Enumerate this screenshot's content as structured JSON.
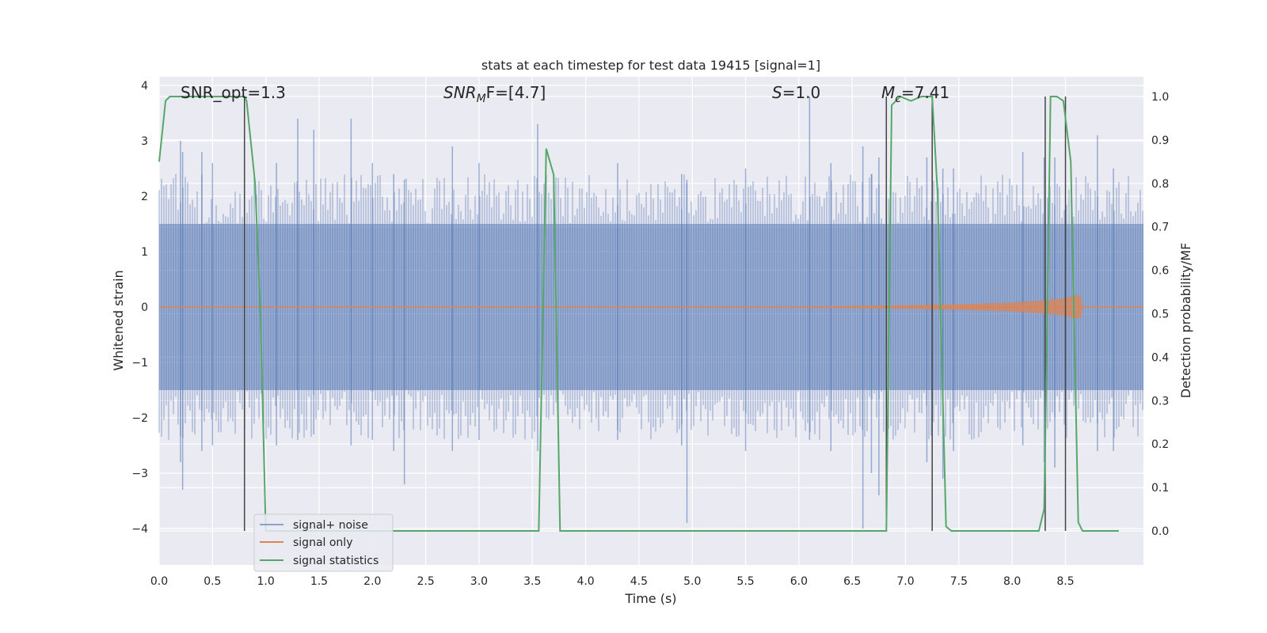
{
  "chart_data": {
    "type": "line",
    "title": "stats at each timestep for test data 19415 [signal=1]",
    "xlabel": "Time (s)",
    "ylabel_left": "Whitened strain",
    "ylabel_right": "Detection probability/MF",
    "xlim": [
      0.0,
      9.0
    ],
    "ylim_left": [
      -4.4,
      4.2
    ],
    "ylim_right": [
      -0.05,
      1.05
    ],
    "x_ticks": [
      "0.0",
      "0.5",
      "1.0",
      "1.5",
      "2.0",
      "2.5",
      "3.0",
      "3.5",
      "4.0",
      "4.5",
      "5.0",
      "5.5",
      "6.0",
      "6.5",
      "7.0",
      "7.5",
      "8.0",
      "8.5"
    ],
    "y_ticks_left": [
      "4",
      "3",
      "2",
      "1",
      "0",
      "−1",
      "−2",
      "−3",
      "−4"
    ],
    "y_ticks_right": [
      "1.0",
      "0.9",
      "0.8",
      "0.7",
      "0.6",
      "0.5",
      "0.4",
      "0.3",
      "0.2",
      "0.1",
      "0.0"
    ],
    "grid": true,
    "legend_position": "lower-left",
    "colors": {
      "plot_background": "#eaeaf2",
      "grid": "#ffffff",
      "signal_noise": "#4c72b0",
      "signal_only": "#dd8452",
      "signal_statistics": "#55a868",
      "vertical_markers": "#444444"
    },
    "annotations": {
      "snr_opt": {
        "text": "SNR_opt=1.3"
      },
      "snr_mf": {
        "prefix": "SNR",
        "sub": "M",
        "suffix": "F=[4.7]"
      },
      "s": {
        "prefix": "S",
        "suffix": "=1.0"
      },
      "mc": {
        "prefix": "M",
        "sub": "c",
        "suffix": "=7.41"
      }
    },
    "series": [
      {
        "name": "signal+ noise",
        "kind": "noise_band",
        "axis": "left",
        "band": [
          -1.5,
          1.5
        ],
        "spikes": [
          {
            "x": 0.2,
            "top": 3.0,
            "bottom": -2.8
          },
          {
            "x": 0.22,
            "top": 2.8,
            "bottom": -3.3
          },
          {
            "x": 0.4,
            "top": 2.8,
            "bottom": -2.6
          },
          {
            "x": 0.5,
            "top": 2.6,
            "bottom": -2.5
          },
          {
            "x": 1.1,
            "top": 2.6,
            "bottom": -2.5
          },
          {
            "x": 1.3,
            "top": 3.4,
            "bottom": -2.4
          },
          {
            "x": 1.45,
            "top": 3.2,
            "bottom": -2.3
          },
          {
            "x": 1.8,
            "top": 3.4,
            "bottom": -2.5
          },
          {
            "x": 2.0,
            "top": 2.6,
            "bottom": -2.4
          },
          {
            "x": 2.2,
            "top": 2.4,
            "bottom": -2.6
          },
          {
            "x": 2.3,
            "top": 2.3,
            "bottom": -3.2
          },
          {
            "x": 2.75,
            "top": 2.9,
            "bottom": -2.6
          },
          {
            "x": 3.0,
            "top": 2.6,
            "bottom": -2.4
          },
          {
            "x": 3.55,
            "top": 3.3,
            "bottom": -2.6
          },
          {
            "x": 4.3,
            "top": 2.6,
            "bottom": -2.4
          },
          {
            "x": 4.9,
            "top": 2.4,
            "bottom": -2.5
          },
          {
            "x": 4.95,
            "top": 2.3,
            "bottom": -3.9
          },
          {
            "x": 5.5,
            "top": 2.5,
            "bottom": -2.6
          },
          {
            "x": 6.1,
            "top": 3.8,
            "bottom": -2.4
          },
          {
            "x": 6.3,
            "top": 2.6,
            "bottom": -2.6
          },
          {
            "x": 6.6,
            "top": 2.9,
            "bottom": -4.0
          },
          {
            "x": 6.68,
            "top": 2.4,
            "bottom": -3.0
          },
          {
            "x": 6.75,
            "top": 2.7,
            "bottom": -3.4
          },
          {
            "x": 7.2,
            "top": 2.7,
            "bottom": -2.8
          },
          {
            "x": 7.35,
            "top": 2.5,
            "bottom": -3.1
          },
          {
            "x": 7.45,
            "top": 2.5,
            "bottom": -2.6
          },
          {
            "x": 8.1,
            "top": 2.8,
            "bottom": -2.5
          },
          {
            "x": 8.3,
            "top": 2.7,
            "bottom": -2.8
          },
          {
            "x": 8.4,
            "top": 2.7,
            "bottom": -2.9
          },
          {
            "x": 8.8,
            "top": 3.1,
            "bottom": -2.6
          },
          {
            "x": 8.95,
            "top": 2.5,
            "bottom": -2.6
          }
        ]
      },
      {
        "name": "signal only",
        "kind": "chirp",
        "axis": "left",
        "x": [
          0.0,
          6.0,
          7.0,
          7.5,
          8.0,
          8.3,
          8.5,
          8.6,
          8.65,
          8.66,
          9.0
        ],
        "amplitude": [
          0.0,
          0.01,
          0.03,
          0.05,
          0.08,
          0.12,
          0.16,
          0.22,
          0.18,
          0.0,
          0.0
        ]
      },
      {
        "name": "signal statistics",
        "kind": "line",
        "axis": "right",
        "x": [
          0.0,
          0.06,
          0.1,
          0.8,
          0.82,
          0.9,
          0.95,
          1.0,
          3.5,
          3.56,
          3.63,
          3.7,
          3.76,
          6.82,
          6.87,
          6.95,
          7.05,
          7.15,
          7.25,
          7.3,
          7.38,
          7.43,
          8.25,
          8.3,
          8.33,
          8.36,
          8.42,
          8.48,
          8.55,
          8.62,
          8.66,
          9.0
        ],
        "y": [
          0.85,
          0.99,
          1.0,
          1.0,
          0.99,
          0.8,
          0.5,
          0.0,
          0.0,
          0.0,
          0.88,
          0.82,
          0.0,
          0.0,
          0.98,
          1.0,
          0.99,
          1.0,
          1.0,
          0.78,
          0.01,
          0.0,
          0.0,
          0.05,
          0.5,
          1.0,
          1.0,
          0.99,
          0.85,
          0.02,
          0.0,
          0.0
        ]
      }
    ],
    "vertical_markers": [
      {
        "x": 0.8,
        "y_from": 0.0,
        "y_to": 1.0
      },
      {
        "x": 6.82,
        "y_from": 0.0,
        "y_to": 1.0
      },
      {
        "x": 7.25,
        "y_from": 0.0,
        "y_to": 1.0
      },
      {
        "x": 8.31,
        "y_from": 0.0,
        "y_to": 1.0
      },
      {
        "x": 8.5,
        "y_from": 0.0,
        "y_to": 1.0
      }
    ]
  }
}
